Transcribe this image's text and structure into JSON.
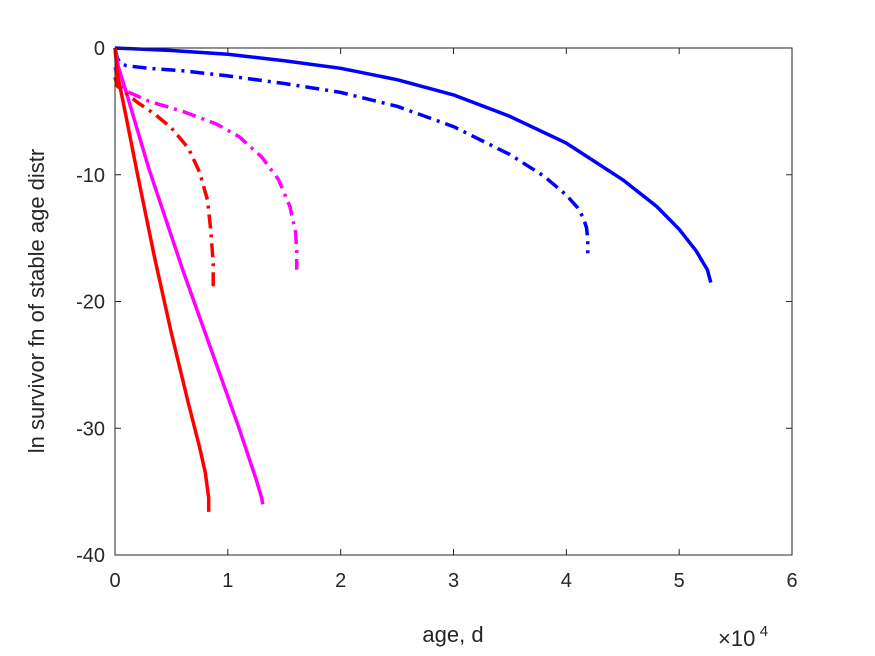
{
  "chart_data": {
    "type": "line",
    "title": "",
    "xlabel": "age, d",
    "ylabel": "ln survivor fn of stable age distr",
    "xlim": [
      0,
      60000
    ],
    "ylim": [
      -40,
      0
    ],
    "x_ticks": [
      0,
      10000,
      20000,
      30000,
      40000,
      50000,
      60000
    ],
    "x_tick_labels": [
      "0",
      "1",
      "2",
      "3",
      "4",
      "5",
      "6"
    ],
    "y_ticks": [
      0,
      -10,
      -20,
      -30,
      -40
    ],
    "y_tick_labels": [
      "0",
      "-10",
      "-20",
      "-30",
      "-40"
    ],
    "x_exponent": {
      "base": "×10",
      "power": "4"
    },
    "grid": false,
    "legend": "none",
    "series": [
      {
        "color": "#0000FF",
        "dash": "solid",
        "x": [
          0,
          5000,
          10000,
          15000,
          20000,
          25000,
          30000,
          35000,
          40000,
          45000,
          48000,
          50000,
          51500,
          52500,
          52800
        ],
        "y": [
          0,
          -0.2,
          -0.5,
          -1.0,
          -1.6,
          -2.5,
          -3.7,
          -5.4,
          -7.5,
          -10.4,
          -12.5,
          -14.3,
          -16.0,
          -17.5,
          -18.5
        ]
      },
      {
        "color": "#0000FF",
        "dash": "dashdot",
        "x": [
          0,
          200,
          500,
          1000,
          3000,
          6000,
          10000,
          15000,
          20000,
          25000,
          30000,
          35000,
          38000,
          40000,
          41000,
          41500,
          41800,
          41900,
          41900
        ],
        "y": [
          0,
          -0.8,
          -1.2,
          -1.4,
          -1.6,
          -1.8,
          -2.2,
          -2.8,
          -3.5,
          -4.6,
          -6.2,
          -8.4,
          -10.1,
          -11.6,
          -12.6,
          -13.4,
          -14.2,
          -15.2,
          -16.2
        ]
      },
      {
        "color": "#FF00FF",
        "dash": "solid",
        "x": [
          0,
          300,
          1000,
          3000,
          6000,
          9000,
          11000,
          12500,
          13000,
          13100
        ],
        "y": [
          0,
          -1.5,
          -3.5,
          -9.5,
          -17.5,
          -25.0,
          -30.0,
          -34.0,
          -35.5,
          -36.0
        ]
      },
      {
        "color": "#FF00FF",
        "dash": "dashdot",
        "x": [
          0,
          300,
          1000,
          3000,
          6000,
          9000,
          11000,
          13000,
          14500,
          15500,
          16000,
          16100,
          16100
        ],
        "y": [
          -1.5,
          -2.5,
          -3.4,
          -4.2,
          -5.0,
          -6.0,
          -7.0,
          -8.6,
          -10.4,
          -12.5,
          -14.5,
          -16.0,
          -17.5
        ]
      },
      {
        "color": "#FF0000",
        "dash": "solid",
        "x": [
          0,
          200,
          1000,
          2000,
          3500,
          5000,
          6500,
          7500,
          8000,
          8300,
          8300
        ],
        "y": [
          0,
          -2.0,
          -5.5,
          -10.0,
          -16.5,
          -22.5,
          -28.0,
          -31.5,
          -33.5,
          -35.5,
          -36.6
        ]
      },
      {
        "color": "#FF0000",
        "dash": "dashdot",
        "x": [
          0,
          200,
          1000,
          2000,
          3500,
          5000,
          6500,
          7500,
          8200,
          8500,
          8700,
          8700
        ],
        "y": [
          -2.3,
          -3.0,
          -3.6,
          -4.3,
          -5.2,
          -6.3,
          -7.9,
          -9.8,
          -12.0,
          -14.5,
          -17.0,
          -19.0
        ]
      }
    ]
  }
}
